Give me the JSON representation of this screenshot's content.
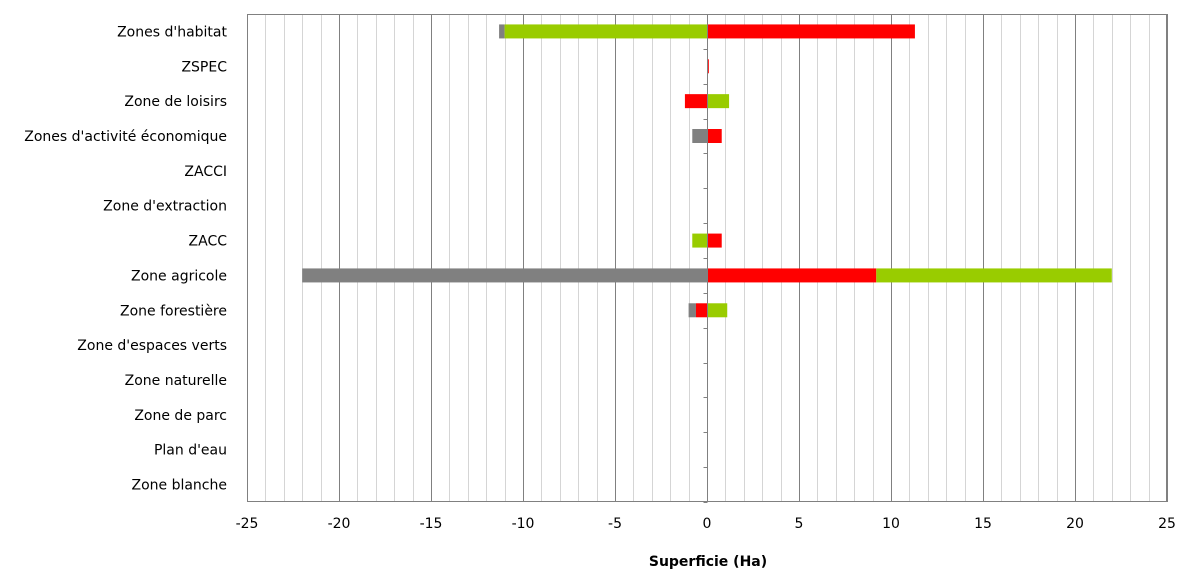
{
  "chart_data": {
    "type": "bar",
    "orientation": "horizontal",
    "stacked": true,
    "title": "",
    "xlabel": "Superficie (Ha)",
    "ylabel": "",
    "xlim": [
      -25,
      25
    ],
    "x_ticks": [
      -25,
      -20,
      -15,
      -10,
      -5,
      0,
      5,
      10,
      15,
      20,
      25
    ],
    "x_tick_labels": [
      "-25",
      "-20",
      "-15",
      "-10",
      "-5",
      "0",
      "5",
      "10",
      "15",
      "20",
      "25"
    ],
    "minor_tick_step": 1,
    "grid": true,
    "legend": "none",
    "categories": [
      "Zones d'habitat",
      "ZSPEC",
      "Zone de loisirs",
      "Zones d'activité économique",
      "ZACCI",
      "Zone d'extraction",
      "ZACC",
      "Zone agricole",
      "Zone forestière",
      "Zone d'espaces verts",
      "Zone naturelle",
      "Zone de parc",
      "Plan d'eau",
      "Zone blanche"
    ],
    "segments": [
      {
        "category": "Zones d'habitat",
        "start": -11.3,
        "end": -11.0,
        "color": "#808080"
      },
      {
        "category": "Zones d'habitat",
        "start": -11.0,
        "end": 0,
        "color": "#99cc00"
      },
      {
        "category": "Zones d'habitat",
        "start": 0,
        "end": 11.3,
        "color": "#ff0000"
      },
      {
        "category": "ZSPEC",
        "start": 0,
        "end": 0.1,
        "color": "#ff0000"
      },
      {
        "category": "Zone de loisirs",
        "start": -1.2,
        "end": 0,
        "color": "#ff0000"
      },
      {
        "category": "Zone de loisirs",
        "start": 0,
        "end": 1.2,
        "color": "#99cc00"
      },
      {
        "category": "Zones d'activité économique",
        "start": -0.8,
        "end": 0,
        "color": "#808080"
      },
      {
        "category": "Zones d'activité économique",
        "start": 0,
        "end": 0.8,
        "color": "#ff0000"
      },
      {
        "category": "ZACC",
        "start": -0.8,
        "end": 0,
        "color": "#99cc00"
      },
      {
        "category": "ZACC",
        "start": 0,
        "end": 0.8,
        "color": "#ff0000"
      },
      {
        "category": "Zone agricole",
        "start": -22.0,
        "end": 0,
        "color": "#808080"
      },
      {
        "category": "Zone agricole",
        "start": 0,
        "end": 9.2,
        "color": "#ff0000"
      },
      {
        "category": "Zone agricole",
        "start": 9.2,
        "end": 22.0,
        "color": "#99cc00"
      },
      {
        "category": "Zone forestière",
        "start": -1.0,
        "end": -0.6,
        "color": "#808080"
      },
      {
        "category": "Zone forestière",
        "start": -0.6,
        "end": 0,
        "color": "#ff0000"
      },
      {
        "category": "Zone forestière",
        "start": 0,
        "end": 1.1,
        "color": "#99cc00"
      }
    ],
    "colors": {
      "gray": "#808080",
      "green": "#99cc00",
      "red": "#ff0000",
      "grid": "#808080",
      "axis": "#808080"
    }
  }
}
